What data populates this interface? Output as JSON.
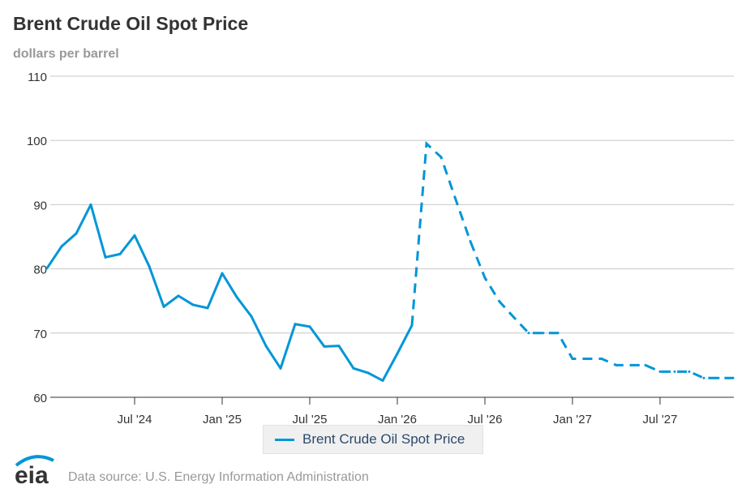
{
  "chart_data": {
    "type": "line",
    "title": "Brent Crude Oil Spot Price",
    "ylabel": "dollars per barrel",
    "xlabel": "",
    "ylim": [
      60,
      110
    ],
    "yticks": [
      "60",
      "70",
      "80",
      "90",
      "100",
      "110"
    ],
    "xticks": [
      {
        "label": "Jul '24",
        "index": 6
      },
      {
        "label": "Jan '25",
        "index": 12
      },
      {
        "label": "Jul '25",
        "index": 18
      },
      {
        "label": "Jan '26",
        "index": 24
      },
      {
        "label": "Jul '26",
        "index": 30
      },
      {
        "label": "Jan '27",
        "index": 36
      },
      {
        "label": "Jul '27",
        "index": 42
      }
    ],
    "grid": true,
    "x_start": "Jan 2024",
    "x_frequency": "monthly",
    "forecast_start_index": 25,
    "series": [
      {
        "name": "Brent Crude Oil Spot Price",
        "color": "#0096d7",
        "values": [
          80.1,
          83.5,
          85.5,
          90.0,
          81.8,
          82.3,
          85.2,
          80.4,
          74.1,
          75.8,
          74.4,
          73.9,
          79.3,
          75.6,
          72.6,
          68.0,
          64.5,
          71.4,
          71.0,
          67.9,
          68.0,
          64.5,
          63.8,
          62.6,
          66.8,
          71.2,
          99.5,
          97.4,
          90.8,
          84.3,
          78.6,
          74.9,
          72.4,
          70.0,
          70.0,
          70.0,
          66.0,
          66.0,
          66.0,
          65.0,
          65.0,
          65.0,
          64.0,
          64.0,
          64.0,
          63.0,
          63.0,
          63.0
        ]
      }
    ],
    "legend": "bottom-center",
    "source": "Data source: U.S. Energy Information Administration",
    "logo_text": "eia"
  }
}
